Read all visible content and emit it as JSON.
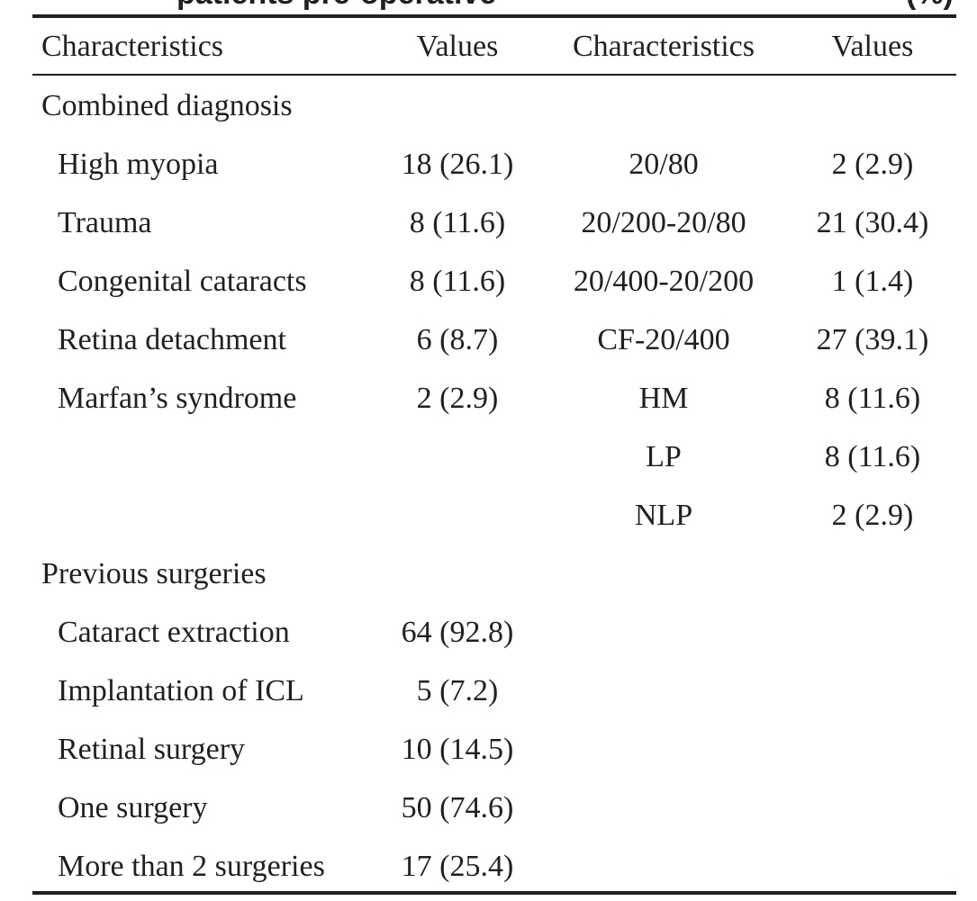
{
  "caption_fragment": {
    "seg1": "patients pre-operative",
    "seg2": "(%)"
  },
  "table": {
    "headers": [
      "Characteristics",
      "Values",
      "Characteristics",
      "Values"
    ],
    "rows": [
      {
        "c1": "Combined diagnosis",
        "c2": "",
        "c3": "",
        "c4": "",
        "indent": false
      },
      {
        "c1": "High myopia",
        "c2": "18 (26.1)",
        "c3": "20/80",
        "c4": "2 (2.9)",
        "indent": true
      },
      {
        "c1": "Trauma",
        "c2": "8 (11.6)",
        "c3": "20/200-20/80",
        "c4": "21 (30.4)",
        "indent": true
      },
      {
        "c1": "Congenital cataracts",
        "c2": "8 (11.6)",
        "c3": "20/400-20/200",
        "c4": "1 (1.4)",
        "indent": true
      },
      {
        "c1": "Retina detachment",
        "c2": "6 (8.7)",
        "c3": "CF-20/400",
        "c4": "27 (39.1)",
        "indent": true
      },
      {
        "c1": "Marfan’s syndrome",
        "c2": "2 (2.9)",
        "c3": "HM",
        "c4": "8 (11.6)",
        "indent": true
      },
      {
        "c1": "",
        "c2": "",
        "c3": "LP",
        "c4": "8 (11.6)",
        "indent": true
      },
      {
        "c1": "",
        "c2": "",
        "c3": "NLP",
        "c4": "2 (2.9)",
        "indent": true
      },
      {
        "c1": "Previous surgeries",
        "c2": "",
        "c3": "",
        "c4": "",
        "indent": false
      },
      {
        "c1": "Cataract extraction",
        "c2": "64 (92.8)",
        "c3": "",
        "c4": "",
        "indent": true
      },
      {
        "c1": "Implantation of ICL",
        "c2": "5 (7.2)",
        "c3": "",
        "c4": "",
        "indent": true
      },
      {
        "c1": "Retinal surgery",
        "c2": "10 (14.5)",
        "c3": "",
        "c4": "",
        "indent": true
      },
      {
        "c1": "One surgery",
        "c2": "50 (74.6)",
        "c3": "",
        "c4": "",
        "indent": true
      },
      {
        "c1": "More than 2 surgeries",
        "c2": "17 (25.4)",
        "c3": "",
        "c4": "",
        "indent": true
      }
    ]
  }
}
